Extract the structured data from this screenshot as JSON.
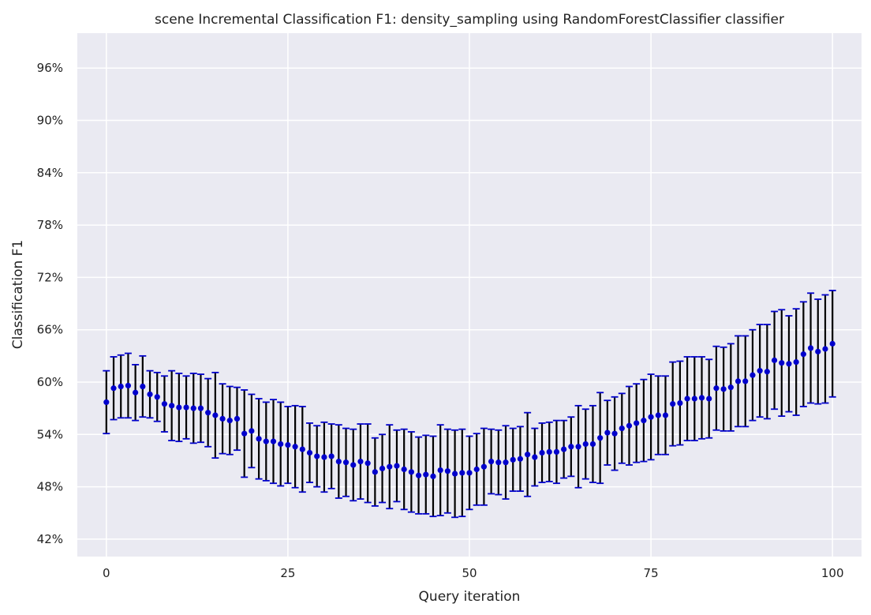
{
  "chart_data": {
    "type": "scatter",
    "title": "scene Incremental Classification F1: density_sampling using RandomForestClassifier classifier",
    "xlabel": "Query iteration",
    "ylabel": "Classification F1",
    "xlim": [
      -4,
      104
    ],
    "ylim": [
      0.4,
      1.0
    ],
    "xticks": [
      0,
      25,
      50,
      75,
      100
    ],
    "yticks": [
      0.42,
      0.48,
      0.54,
      0.6,
      0.66,
      0.72,
      0.78,
      0.84,
      0.9,
      0.96
    ],
    "ytick_format": "percent",
    "grid": true,
    "x": [
      0,
      1,
      2,
      3,
      4,
      5,
      6,
      7,
      8,
      9,
      10,
      11,
      12,
      13,
      14,
      15,
      16,
      17,
      18,
      19,
      20,
      21,
      22,
      23,
      24,
      25,
      26,
      27,
      28,
      29,
      30,
      31,
      32,
      33,
      34,
      35,
      36,
      37,
      38,
      39,
      40,
      41,
      42,
      43,
      44,
      45,
      46,
      47,
      48,
      49,
      50,
      51,
      52,
      53,
      54,
      55,
      56,
      57,
      58,
      59,
      60,
      61,
      62,
      63,
      64,
      65,
      66,
      67,
      68,
      69,
      70,
      71,
      72,
      73,
      74,
      75,
      76,
      77,
      78,
      79,
      80,
      81,
      82,
      83,
      84,
      85,
      86,
      87,
      88,
      89,
      90,
      91,
      92,
      93,
      94,
      95,
      96,
      97,
      98,
      99,
      100
    ],
    "y": [
      0.577,
      0.593,
      0.595,
      0.596,
      0.588,
      0.595,
      0.586,
      0.583,
      0.575,
      0.573,
      0.571,
      0.571,
      0.57,
      0.57,
      0.565,
      0.562,
      0.558,
      0.556,
      0.558,
      0.541,
      0.544,
      0.535,
      0.532,
      0.532,
      0.529,
      0.528,
      0.526,
      0.523,
      0.519,
      0.515,
      0.514,
      0.515,
      0.509,
      0.508,
      0.505,
      0.509,
      0.507,
      0.497,
      0.501,
      0.503,
      0.504,
      0.5,
      0.497,
      0.493,
      0.494,
      0.492,
      0.499,
      0.498,
      0.495,
      0.496,
      0.496,
      0.5,
      0.503,
      0.509,
      0.508,
      0.508,
      0.511,
      0.512,
      0.517,
      0.514,
      0.519,
      0.52,
      0.52,
      0.523,
      0.526,
      0.526,
      0.529,
      0.529,
      0.536,
      0.542,
      0.541,
      0.547,
      0.55,
      0.553,
      0.556,
      0.56,
      0.562,
      0.562,
      0.575,
      0.576,
      0.581,
      0.581,
      0.582,
      0.581,
      0.593,
      0.592,
      0.594,
      0.601,
      0.601,
      0.608,
      0.613,
      0.612,
      0.625,
      0.622,
      0.621,
      0.623,
      0.632,
      0.639,
      0.635,
      0.638,
      0.644
    ],
    "yerr": [
      0.036,
      0.036,
      0.036,
      0.037,
      0.032,
      0.035,
      0.027,
      0.028,
      0.032,
      0.04,
      0.039,
      0.036,
      0.04,
      0.039,
      0.039,
      0.049,
      0.04,
      0.039,
      0.036,
      0.05,
      0.042,
      0.046,
      0.045,
      0.048,
      0.048,
      0.044,
      0.047,
      0.049,
      0.034,
      0.035,
      0.04,
      0.037,
      0.042,
      0.039,
      0.041,
      0.043,
      0.045,
      0.039,
      0.039,
      0.048,
      0.041,
      0.046,
      0.046,
      0.044,
      0.045,
      0.046,
      0.052,
      0.048,
      0.05,
      0.05,
      0.042,
      0.041,
      0.044,
      0.037,
      0.037,
      0.042,
      0.036,
      0.037,
      0.048,
      0.033,
      0.034,
      0.034,
      0.036,
      0.033,
      0.034,
      0.047,
      0.04,
      0.044,
      0.052,
      0.037,
      0.042,
      0.04,
      0.045,
      0.045,
      0.047,
      0.049,
      0.045,
      0.045,
      0.048,
      0.048,
      0.048,
      0.048,
      0.047,
      0.045,
      0.048,
      0.048,
      0.05,
      0.052,
      0.052,
      0.052,
      0.053,
      0.054,
      0.056,
      0.061,
      0.055,
      0.061,
      0.06,
      0.063,
      0.06,
      0.062,
      0.061
    ],
    "colors": {
      "background": "#eaeaf2",
      "grid": "#ffffff",
      "marker": "#0000cc",
      "errorbar": "#000000",
      "cap": "#0000cc"
    }
  }
}
